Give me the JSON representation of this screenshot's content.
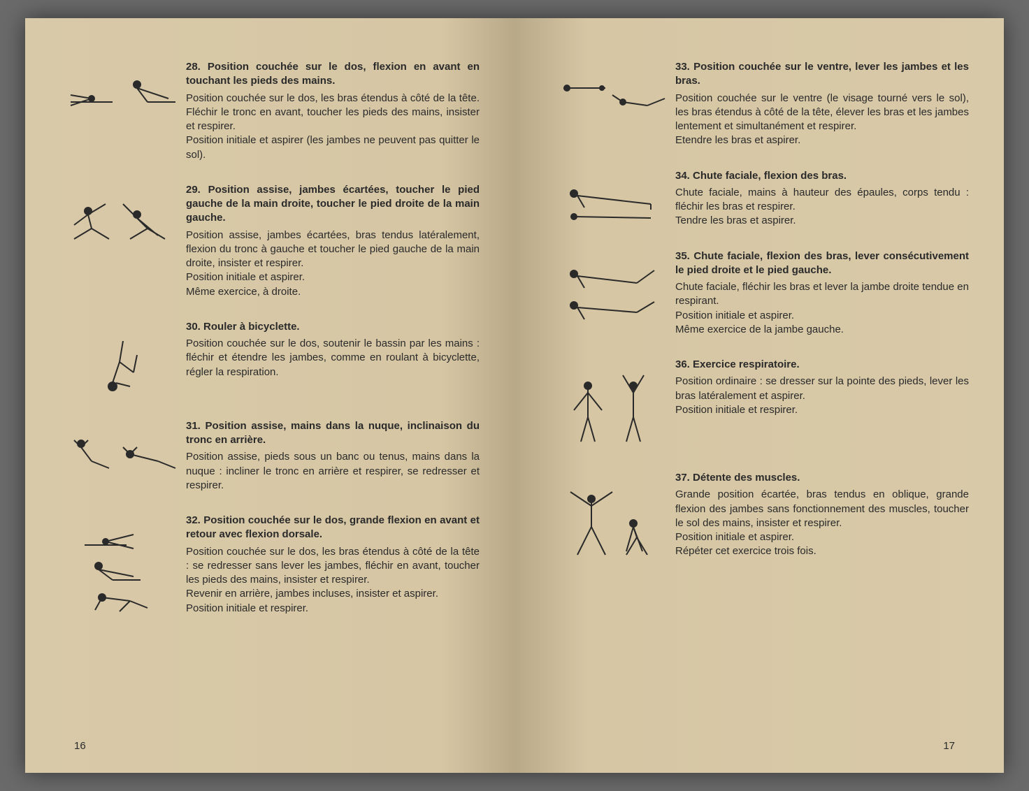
{
  "colors": {
    "paper": "#d8c9a8",
    "ink": "#2a2a2a"
  },
  "left_page_number": "16",
  "right_page_number": "17",
  "left": [
    {
      "num": "28.",
      "title": "Position couchée sur le dos, flexion en avant en touchant les pieds des mains.",
      "body": "Position couchée sur le dos, les bras étendus à côté de la tête. Fléchir le tronc en avant, toucher les pieds des mains, insister et respirer.\nPosition initiale et aspirer (les jambes ne peuvent pas quitter le sol)."
    },
    {
      "num": "29.",
      "title": "Position assise, jambes écartées, toucher le pied gauche de la main droite, toucher le pied droite de la main gauche.",
      "body": "Position assise, jambes écartées, bras tendus latéralement, flexion du tronc à gauche et toucher le pied gauche de la main droite, insister et respirer.\nPosition initiale et aspirer.\nMême exercice, à droite."
    },
    {
      "num": "30.",
      "title": "Rouler à bicyclette.",
      "body": "Position couchée sur le dos, soutenir le bassin par les mains : fléchir et étendre les jambes, comme en roulant à bicyclette, régler la respiration."
    },
    {
      "num": "31.",
      "title": "Position assise, mains dans la nuque, inclinaison du tronc en arrière.",
      "body": "Position assise, pieds sous un banc ou tenus, mains dans la nuque : incliner le tronc en arrière et respirer, se redresser et respirer."
    },
    {
      "num": "32.",
      "title": "Position couchée sur le dos, grande flexion en avant et retour avec flexion dorsale.",
      "body": "Position couchée sur le dos, les bras étendus à côté de la tête : se redresser sans lever les jambes, fléchir en avant, toucher les pieds des mains, insister et respirer.\nRevenir en arrière, jambes incluses, insister et aspirer.\nPosition initiale et respirer."
    }
  ],
  "right": [
    {
      "num": "33.",
      "title": "Position couchée sur le ventre, lever les jambes et les bras.",
      "body": "Position couchée sur le ventre (le visage tourné vers le sol), les bras étendus à côté de la tête, élever les bras et les jambes lentement et simultanément et respirer.\nEtendre les bras et aspirer."
    },
    {
      "num": "34.",
      "title": "Chute faciale, flexion des bras.",
      "body": "Chute faciale, mains à hauteur des épaules, corps tendu : fléchir les bras et respirer.\nTendre les bras et aspirer."
    },
    {
      "num": "35.",
      "title": "Chute faciale, flexion des bras, lever consécutivement le pied droite et le pied gauche.",
      "body": "Chute faciale, fléchir les bras et lever la jambe droite tendue en respirant.\nPosition initiale et aspirer.\nMême exercice de la jambe gauche."
    },
    {
      "num": "36.",
      "title": "Exercice respiratoire.",
      "body": "Position ordinaire : se dresser sur la pointe des pieds, lever les bras latéralement et aspirer.\nPosition initiale et respirer."
    },
    {
      "num": "37.",
      "title": "Détente des muscles.",
      "body": "Grande position écartée, bras tendus en oblique, grande flexion des jambes sans fonctionnement des muscles, toucher le sol des mains, insister et respirer.\nPosition initiale et aspirer.\nRépéter cet exercice trois fois."
    }
  ]
}
